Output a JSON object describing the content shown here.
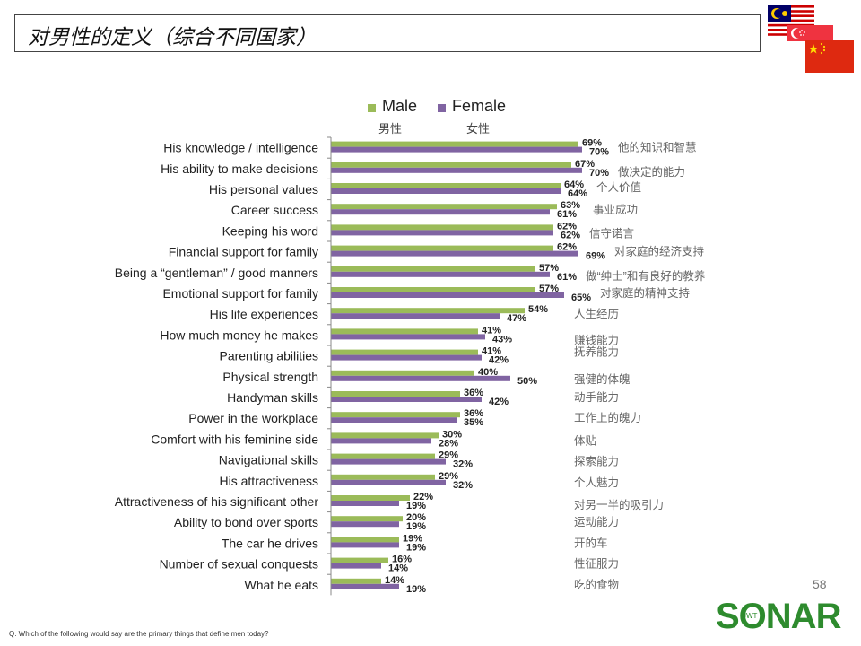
{
  "title": "对男性的定义（综合不同国家）",
  "flags": [
    "malaysia-flag",
    "singapore-flag",
    "china-flag"
  ],
  "legend": {
    "male": {
      "label": "Male",
      "cn": "男性",
      "color": "#9bbb59"
    },
    "female": {
      "label": "Female",
      "cn": "女性",
      "color": "#8064a2"
    }
  },
  "page_number": "58",
  "footnote": "Q. Which of the following would say are the primary things that define men today?",
  "logo_text": "SONAR",
  "logo_sub": "JWT",
  "chart_data": {
    "type": "bar",
    "orientation": "horizontal",
    "title": "对男性的定义（综合不同国家）",
    "categories": [
      "His knowledge / intelligence",
      "His ability to make decisions",
      "His personal values",
      "Career success",
      "Keeping his word",
      "Financial support for family",
      "Being a “gentleman” / good manners",
      "Emotional support for family",
      "His life experiences",
      "How much money he makes",
      "Parenting abilities",
      "Physical strength",
      "Handyman skills",
      "Power in the workplace",
      "Comfort with his feminine side",
      "Navigational skills",
      "His attractiveness",
      "Attractiveness of his significant other",
      "Ability to bond over sports",
      "The car he drives",
      "Number of sexual conquests",
      "What he eats"
    ],
    "categories_cn": [
      "他的知识和智慧",
      "做决定的能力",
      "个人价值",
      "事业成功",
      "信守诺言",
      "对家庭的经济支持",
      "做“绅士”和有良好的教养",
      "对家庭的精神支持",
      "人生经历",
      "赚钱能力",
      "抚养能力",
      "强健的体魄",
      "动手能力",
      "工作上的魄力",
      "体贴",
      "探索能力",
      "个人魅力",
      "对另一半的吸引力",
      "运动能力",
      "开的车",
      "性征服力",
      "吃的食物"
    ],
    "series": [
      {
        "name": "Male",
        "color": "#9bbb59",
        "values": [
          69,
          67,
          64,
          63,
          62,
          62,
          57,
          57,
          54,
          41,
          41,
          40,
          36,
          36,
          30,
          29,
          29,
          22,
          20,
          19,
          16,
          14
        ]
      },
      {
        "name": "Female",
        "color": "#8064a2",
        "values": [
          70,
          70,
          64,
          61,
          62,
          69,
          61,
          65,
          47,
          43,
          42,
          50,
          42,
          35,
          28,
          32,
          32,
          19,
          19,
          19,
          14,
          19
        ]
      }
    ],
    "value_suffix": "%",
    "xlim": [
      0,
      100
    ],
    "xlabel": "",
    "ylabel": "",
    "grid": false,
    "legend": "top"
  }
}
